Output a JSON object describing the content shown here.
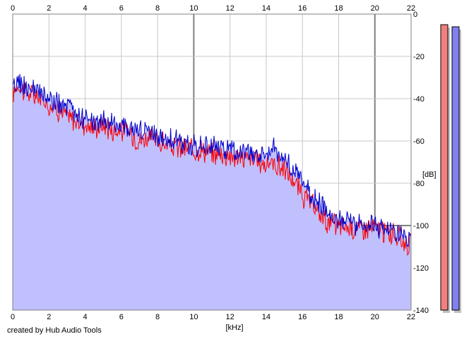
{
  "credit": "created by Hub Audio Tools",
  "colors": {
    "background": "#ffffff",
    "grid": "#c8c8c8",
    "grid_major": "#808080",
    "fill": "#c0c0ff",
    "left_channel": "#ff0000",
    "right_channel": "#0000cc",
    "meter_left": "#f08080",
    "meter_right": "#8080f0",
    "meter_shadow": "#c0c0c0"
  },
  "chart_data": {
    "type": "line",
    "xlabel": "[kHz]",
    "ylabel": "[dB]",
    "xlim": [
      0,
      22
    ],
    "ylim": [
      -140,
      0
    ],
    "x_ticks": [
      "0",
      "2",
      "4",
      "6",
      "8",
      "10",
      "12",
      "14",
      "16",
      "18",
      "20",
      "22"
    ],
    "y_ticks": [
      "0",
      "-20",
      "-40",
      "-60",
      "-80",
      "-100",
      "-120",
      "-140"
    ],
    "grid": true,
    "filled_area": true,
    "x": [
      0,
      0.3,
      0.6,
      1.0,
      1.5,
      2.0,
      2.5,
      3.0,
      3.5,
      4.0,
      4.5,
      5.0,
      5.5,
      6.0,
      6.5,
      7.0,
      7.5,
      8.0,
      8.5,
      9.0,
      9.5,
      10.0,
      10.5,
      11.0,
      11.5,
      12.0,
      12.5,
      13.0,
      13.5,
      14.0,
      14.3,
      14.6,
      15.0,
      15.5,
      16.0,
      16.5,
      17.0,
      17.5,
      18.0,
      18.5,
      19.0,
      19.5,
      20.0,
      20.5,
      21.0,
      21.5,
      22.0
    ],
    "series": [
      {
        "values": [
          -38,
          -33,
          -36,
          -38,
          -40,
          -43,
          -45,
          -48,
          -51,
          -52,
          -54,
          -52,
          -55,
          -55,
          -56,
          -60,
          -58,
          -60,
          -62,
          -63,
          -64,
          -64,
          -64,
          -66,
          -66,
          -67,
          -68,
          -68,
          -70,
          -71,
          -70,
          -72,
          -73,
          -79,
          -86,
          -90,
          -95,
          -99,
          -100,
          -101,
          -101,
          -101,
          -101,
          -103,
          -104,
          -107,
          -109
        ]
      },
      {
        "values": [
          -37,
          -31,
          -34,
          -36,
          -38,
          -40,
          -43,
          -44,
          -47,
          -50,
          -52,
          -50,
          -53,
          -51,
          -54,
          -55,
          -56,
          -57,
          -58,
          -60,
          -62,
          -62,
          -62,
          -63,
          -63,
          -64,
          -65,
          -65,
          -66,
          -66,
          -62,
          -67,
          -68,
          -73,
          -80,
          -86,
          -90,
          -94,
          -96,
          -98,
          -99,
          -99,
          -100,
          -101,
          -103,
          -105,
          -108
        ]
      }
    ]
  },
  "meters": {
    "left_level_db": -5,
    "right_level_db": -6
  }
}
